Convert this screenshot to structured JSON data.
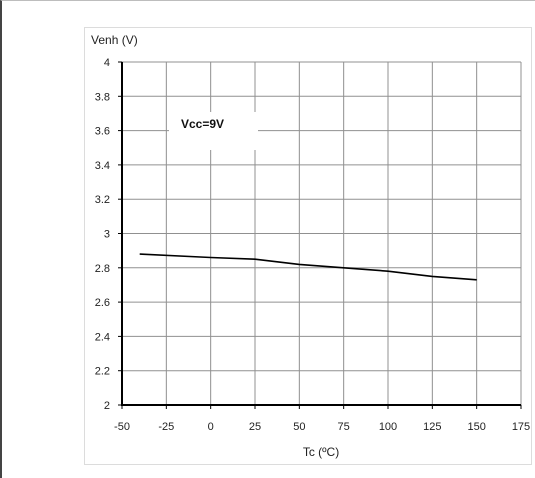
{
  "chart_data": {
    "type": "line",
    "title": "",
    "xlabel": "Tc (ºC)",
    "ylabel": "Venh (V)",
    "xlim": [
      -50,
      175
    ],
    "ylim": [
      2,
      4
    ],
    "x_ticks": [
      -50,
      -25,
      0,
      25,
      50,
      75,
      100,
      125,
      150,
      175
    ],
    "y_ticks": [
      2,
      2.2,
      2.4,
      2.6,
      2.8,
      3,
      3.2,
      3.4,
      3.6,
      3.8,
      4
    ],
    "grid": true,
    "series": [
      {
        "x": [
          -40,
          0,
          25,
          50,
          75,
          100,
          125,
          150
        ],
        "y": [
          2.88,
          2.86,
          2.85,
          2.82,
          2.8,
          2.78,
          2.75,
          2.73
        ]
      }
    ],
    "annotations": [
      {
        "text": "Vcc=9V"
      }
    ]
  },
  "colors": {
    "series_line": "#000000",
    "grid": "#909090",
    "axis": "#000000"
  }
}
